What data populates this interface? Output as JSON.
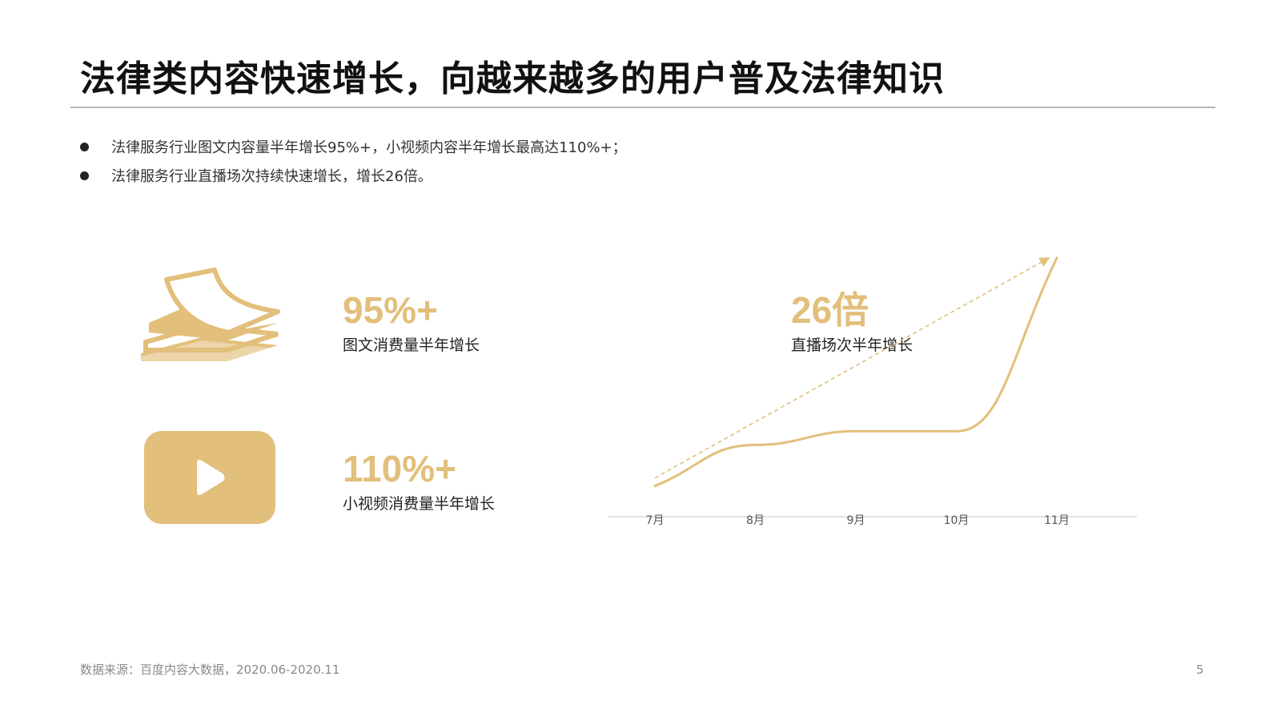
{
  "header": {
    "title": "法律类内容快速增长，向越来越多的用户普及法律知识"
  },
  "bullets": [
    "法律服务行业图文内容量半年增长95%+，小视频内容半年增长最高达110%+；",
    "法律服务行业直播场次持续快速增长，增长26倍。"
  ],
  "stats": {
    "image_text": {
      "value": "95%+",
      "label": "图文消费量半年增长",
      "icon": "document-stack-icon"
    },
    "short_video": {
      "value": "110%+",
      "label": "小视频消费量半年增长",
      "icon": "video-play-icon"
    },
    "live": {
      "value": "26倍",
      "label": "直播场次半年增长"
    }
  },
  "colors": {
    "accent": "#e2bf7a",
    "text": "#222222",
    "muted": "#8a8a8a",
    "axis": "#d9d9d9"
  },
  "chart_data": {
    "type": "line",
    "title": "",
    "xlabel": "",
    "ylabel": "",
    "categories": [
      "7月",
      "8月",
      "9月",
      "10月",
      "11月"
    ],
    "series": [
      {
        "values": [
          1,
          5.5,
          7,
          7,
          26
        ]
      }
    ],
    "trend_arrow": "dashed arrow from 7月 to 11月",
    "ylim": [
      0,
      26
    ],
    "grid": false,
    "legend": "none"
  },
  "footer": {
    "source": "数据来源：百度内容大数据，2020.06-2020.11",
    "page": "5"
  }
}
